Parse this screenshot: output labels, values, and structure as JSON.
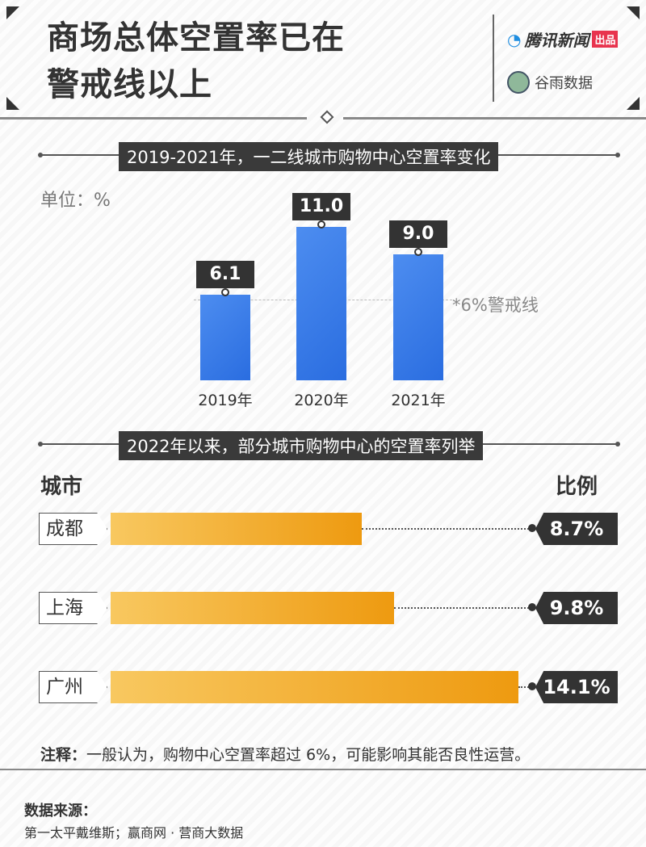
{
  "header": {
    "title_line1": "商场总体空置率已在",
    "title_line2": "警戒线以上",
    "brand": "腾讯新闻",
    "brand_tag": "出品",
    "partner": "谷雨数据"
  },
  "section1": {
    "title": "2019-2021年，一二线城市购物中心空置率变化",
    "unit": "单位：%",
    "threshold_label": "*6%警戒线"
  },
  "section2": {
    "title": "2022年以来，部分城市购物中心的空置率列举",
    "col_city": "城市",
    "col_ratio": "比例"
  },
  "chart_data": [
    {
      "type": "bar",
      "categories": [
        "2019年",
        "2020年",
        "2021年"
      ],
      "values": [
        6.1,
        11.0,
        9.0
      ],
      "labels": [
        "6.1",
        "11.0",
        "9.0"
      ],
      "ylim": [
        0,
        11.0
      ],
      "threshold": 6,
      "bar_color": "#3479e8",
      "ylabel": "单位：%"
    },
    {
      "type": "bar",
      "orientation": "horizontal",
      "categories": [
        "成都",
        "上海",
        "广州"
      ],
      "values": [
        8.7,
        9.8,
        14.1
      ],
      "labels": [
        "8.7%",
        "9.8%",
        "14.1%"
      ],
      "bar_color": "#f0a020"
    }
  ],
  "note": {
    "label": "注释：",
    "text": "一般认为，购物中心空置率超过 6%，可能影响其能否良性运营。"
  },
  "source": {
    "label": "数据来源：",
    "text": "第一太平戴维斯；赢商网 · 营商大数据"
  },
  "colors": {
    "blue": "#3479e8",
    "orange": "#f0a020",
    "dark": "#333333"
  }
}
